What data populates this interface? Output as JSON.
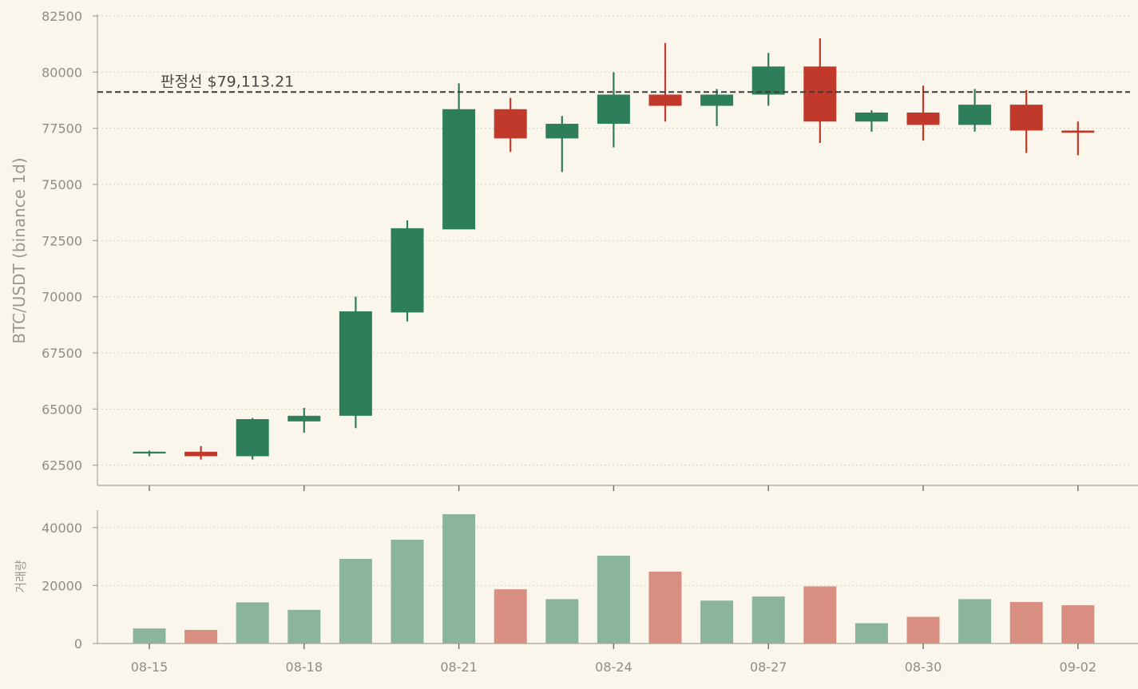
{
  "chart_data": {
    "type": "candlestick",
    "x": [
      "08-15",
      "08-16",
      "08-17",
      "08-18",
      "08-19",
      "08-20",
      "08-21",
      "08-22",
      "08-23",
      "08-24",
      "08-25",
      "08-26",
      "08-27",
      "08-28",
      "08-29",
      "08-30",
      "08-31",
      "09-01",
      "09-02"
    ],
    "x_tick_labels": [
      "08-15",
      "08-18",
      "08-21",
      "08-24",
      "08-27",
      "08-30",
      "09-02"
    ],
    "ohlc": [
      {
        "open": 63050,
        "high": 63150,
        "low": 62900,
        "close": 63100
      },
      {
        "open": 63100,
        "high": 63350,
        "low": 62750,
        "close": 62900
      },
      {
        "open": 62900,
        "high": 64600,
        "low": 62750,
        "close": 64550
      },
      {
        "open": 64450,
        "high": 65050,
        "low": 63950,
        "close": 64700
      },
      {
        "open": 64700,
        "high": 70000,
        "low": 64150,
        "close": 69350
      },
      {
        "open": 69300,
        "high": 73400,
        "low": 68900,
        "close": 73050
      },
      {
        "open": 73000,
        "high": 79500,
        "low": 73000,
        "close": 78350
      },
      {
        "open": 78350,
        "high": 78850,
        "low": 76450,
        "close": 77050
      },
      {
        "open": 77050,
        "high": 78050,
        "low": 75550,
        "close": 77700
      },
      {
        "open": 77700,
        "high": 80000,
        "low": 76650,
        "close": 79000
      },
      {
        "open": 79000,
        "high": 81300,
        "low": 77800,
        "close": 78500
      },
      {
        "open": 78500,
        "high": 79250,
        "low": 77600,
        "close": 79000
      },
      {
        "open": 79000,
        "high": 80850,
        "low": 78500,
        "close": 80250
      },
      {
        "open": 80250,
        "high": 81500,
        "low": 76850,
        "close": 77800
      },
      {
        "open": 77800,
        "high": 78300,
        "low": 77350,
        "close": 78200
      },
      {
        "open": 78200,
        "high": 79400,
        "low": 76950,
        "close": 77650
      },
      {
        "open": 77650,
        "high": 79250,
        "low": 77350,
        "close": 78550
      },
      {
        "open": 78550,
        "high": 79200,
        "low": 76400,
        "close": 77400
      },
      {
        "open": 77400,
        "high": 77800,
        "low": 76300,
        "close": 77300
      }
    ],
    "volume": [
      5200,
      4700,
      14200,
      11600,
      29200,
      35800,
      44600,
      18700,
      15300,
      30300,
      24800,
      14800,
      16200,
      19700,
      7000,
      9200,
      15300,
      14300,
      13200
    ],
    "threshold": {
      "value": 79113.21,
      "label": "판정선 $79,113.21"
    },
    "price_axis": {
      "label": "BTC/USDT (binance 1d)",
      "ylim": [
        61600,
        82500
      ],
      "ticks": [
        62500,
        65000,
        67500,
        70000,
        72500,
        75000,
        77500,
        80000,
        82500
      ]
    },
    "volume_axis": {
      "label": "거래량",
      "ylim": [
        0,
        46000
      ],
      "ticks": [
        0,
        20000,
        40000
      ]
    },
    "grid": true,
    "colors": {
      "up": "#2e7d5b",
      "down": "#c0392b",
      "up_volume": "#8ab59b",
      "down_volume": "#d98e82",
      "background": "#faf6eb",
      "grid": "#d8d3c4",
      "axis": "#a9a596",
      "threshold": "#3d3b38"
    }
  }
}
